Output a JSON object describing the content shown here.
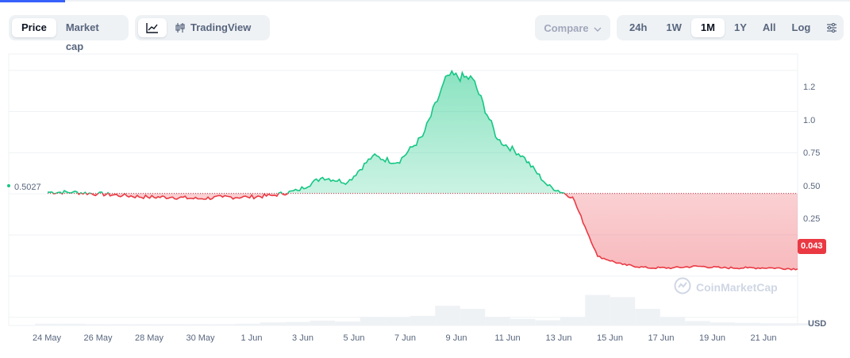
{
  "tabs": {
    "price": "Price",
    "market_cap": "Market cap",
    "tradingview": "TradingView",
    "compare": "Compare",
    "ranges": [
      "24h",
      "1W",
      "1M",
      "1Y",
      "All"
    ],
    "active_range": "1M",
    "log": "Log"
  },
  "icons": {
    "line_chart": "line-chart-icon",
    "candles": "candlestick-icon",
    "chevron": "chevron-down-icon",
    "settings": "sliders-icon",
    "watermark": "coinmarketcap-logo"
  },
  "chart": {
    "open_label": "0.5027",
    "current_price": "0.043",
    "currency": "USD",
    "watermark": "CoinMarketCap",
    "y_ticks": [
      "1.2",
      "1.0",
      "0.75",
      "0.50",
      "0.25"
    ],
    "x_ticks": [
      "24 May",
      "26 May",
      "28 May",
      "30 May",
      "1 Jun",
      "3 Jun",
      "5 Jun",
      "7 Jun",
      "9 Jun",
      "11 Jun",
      "13 Jun",
      "15 Jun",
      "17 Jun",
      "19 Jun",
      "21 Jun"
    ]
  },
  "colors": {
    "up": "#16c784",
    "down": "#ea3943",
    "accent": "#3861fb"
  },
  "chart_data": {
    "type": "area",
    "x": [
      "23 May",
      "24 May",
      "25 May",
      "26 May",
      "27 May",
      "28 May",
      "29 May",
      "30 May",
      "31 May",
      "1 Jun",
      "2 Jun",
      "3 Jun",
      "4 Jun",
      "5 Jun",
      "6 Jun",
      "7 Jun",
      "8 Jun",
      "9 Jun",
      "10 Jun",
      "11 Jun",
      "12 Jun",
      "13 Jun",
      "14 Jun",
      "15 Jun",
      "16 Jun",
      "17 Jun",
      "18 Jun",
      "19 Jun",
      "20 Jun",
      "21 Jun",
      "22 Jun"
    ],
    "series": [
      {
        "values": [
          0.51,
          0.51,
          0.5,
          0.49,
          0.48,
          0.48,
          0.47,
          0.48,
          0.48,
          0.49,
          0.52,
          0.6,
          0.57,
          0.73,
          0.69,
          0.85,
          1.22,
          1.2,
          0.83,
          0.73,
          0.55,
          0.48,
          0.12,
          0.07,
          0.05,
          0.05,
          0.06,
          0.05,
          0.05,
          0.05,
          0.043
        ]
      }
    ],
    "baseline": 0.5027,
    "volume": [
      0.04,
      0.04,
      0.03,
      0.03,
      0.03,
      0.03,
      0.03,
      0.03,
      0.04,
      0.07,
      0.08,
      0.11,
      0.09,
      0.2,
      0.18,
      0.22,
      0.45,
      0.38,
      0.2,
      0.15,
      0.12,
      0.18,
      0.7,
      0.65,
      0.38,
      0.18,
      0.1,
      0.07,
      0.06,
      0.05,
      0.05
    ],
    "y_range": [
      -0.3,
      1.35
    ],
    "grid": true
  }
}
